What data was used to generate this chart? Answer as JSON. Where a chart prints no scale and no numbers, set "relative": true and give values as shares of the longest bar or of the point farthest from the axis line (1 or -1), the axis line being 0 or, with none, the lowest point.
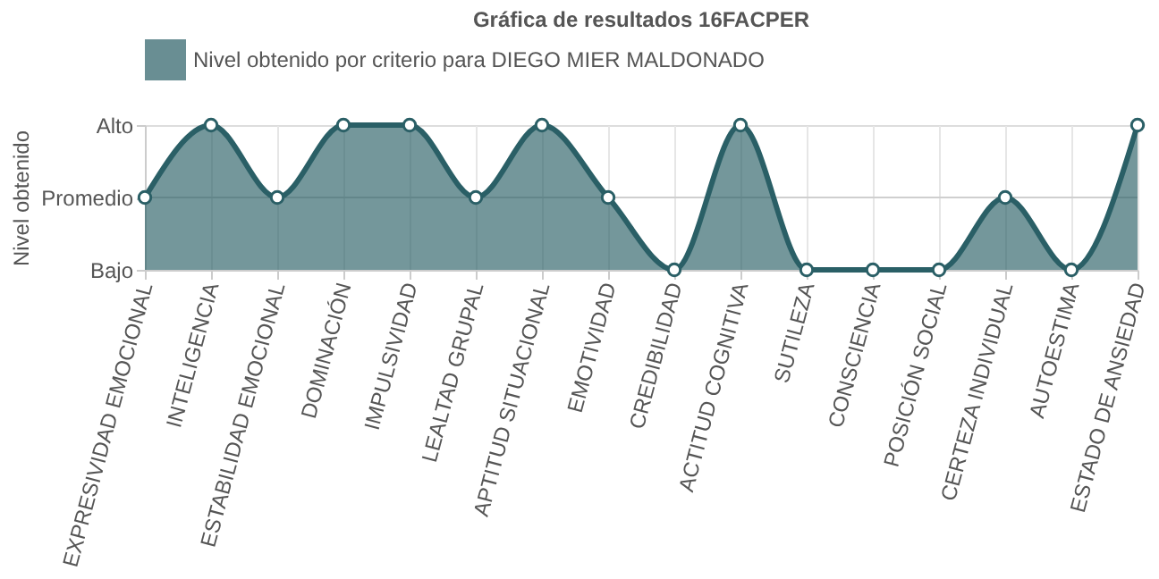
{
  "chart_data": {
    "type": "area",
    "title": "Gráfica de resultados 16FACPER",
    "ylabel": "Nivel obtenido",
    "categories": [
      "EXPRESIVIDAD EMOCIONAL",
      "INTELIGENCIA",
      "ESTABILIDAD EMOCIONAL",
      "DOMINACIÓN",
      "IMPULSIVIDAD",
      "LEALTAD GRUPAL",
      "APTITUD SITUACIONAL",
      "EMOTIVIDAD",
      "CREDIBILIDAD",
      "ACTITUD COGNITIVA",
      "SUTILEZA",
      "CONSCIENCIA",
      "POSICIÓN SOCIAL",
      "CERTEZA INDIVIDUAL",
      "AUTOESTIMA",
      "ESTADO DE ANSIEDAD"
    ],
    "series": [
      {
        "name": "Nivel obtenido por criterio para DIEGO MIER MALDONADO",
        "color": "#2a5f66",
        "values": [
          0.5,
          1,
          0.5,
          1,
          1,
          0.5,
          1,
          0.5,
          0,
          1,
          0,
          0,
          0,
          0.5,
          0,
          1
        ]
      }
    ],
    "relative": true,
    "y_categories": [
      "Alto",
      "Promedio",
      "Bajo"
    ],
    "ref_lines": [
      {
        "axis": "y",
        "value": 0.5,
        "color": "#cfcfcf"
      }
    ],
    "grid": "x",
    "legend": "top",
    "marker": "circle",
    "line_style": "solid"
  }
}
